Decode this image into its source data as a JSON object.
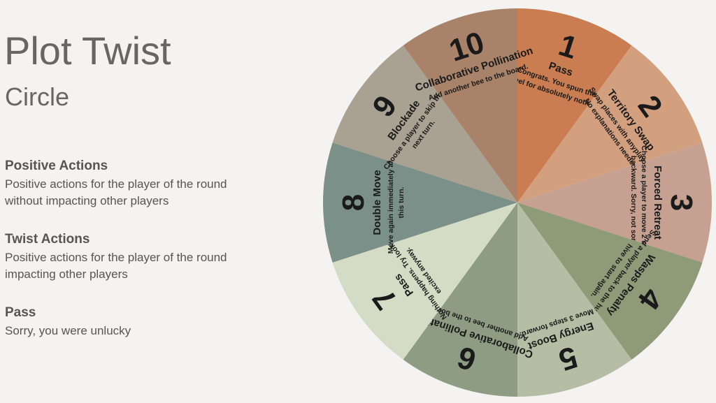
{
  "header": {
    "title": "Plot Twist",
    "subtitle": "Circle"
  },
  "sections": [
    {
      "heading": "Positive Actions",
      "text": "Positive actions for the player of the round without impacting other players"
    },
    {
      "heading": "Twist Actions",
      "text": "Positive actions for the player of the round impacting other players"
    },
    {
      "heading": "Pass",
      "text": "Sorry, you were unlucky"
    }
  ],
  "wheel": {
    "segments": [
      {
        "number": "1",
        "title": "Pass",
        "lines": [
          "Congrats. You spun the",
          "wheel for absolutely nothing."
        ],
        "color": "#c97d50"
      },
      {
        "number": "2",
        "title": "Territory Swap",
        "lines": [
          "Swap places with anyplayer.",
          "No explanations needed."
        ],
        "color": "#d3a07f"
      },
      {
        "number": "3",
        "title": "Forced Retreat",
        "lines": [
          "Choose a player to move 2 steps",
          "backward. Sorry, not sorry."
        ],
        "color": "#c6a090"
      },
      {
        "number": "4",
        "title": "Wasps Penalty",
        "lines": [
          "Send a player back to the human",
          "hive to start again."
        ],
        "color": "#8f9a78"
      },
      {
        "number": "5",
        "title": "Energy Boost",
        "lines": [
          "Move 3 steps forward."
        ],
        "color": "#b5bda5"
      },
      {
        "number": "6",
        "title": "Collaborative Pollination",
        "lines": [
          "Add another bee to the board."
        ],
        "color": "#8e9c84"
      },
      {
        "number": "7",
        "title": "Pass",
        "lines": [
          "Nothing happens. Try looking",
          "excited anyway."
        ],
        "color": "#d5dcc5"
      },
      {
        "number": "8",
        "title": "Double Move",
        "lines": [
          "Move again immediately after",
          "this turn."
        ],
        "color": "#7b9088"
      },
      {
        "number": "9",
        "title": "Blockade",
        "lines": [
          "Choose a player to skip their",
          "next turn."
        ],
        "color": "#a9a191"
      },
      {
        "number": "10",
        "title": "Collaborative Pollination",
        "lines": [
          "Add another bee to the board."
        ],
        "color": "#a8836a"
      }
    ]
  }
}
